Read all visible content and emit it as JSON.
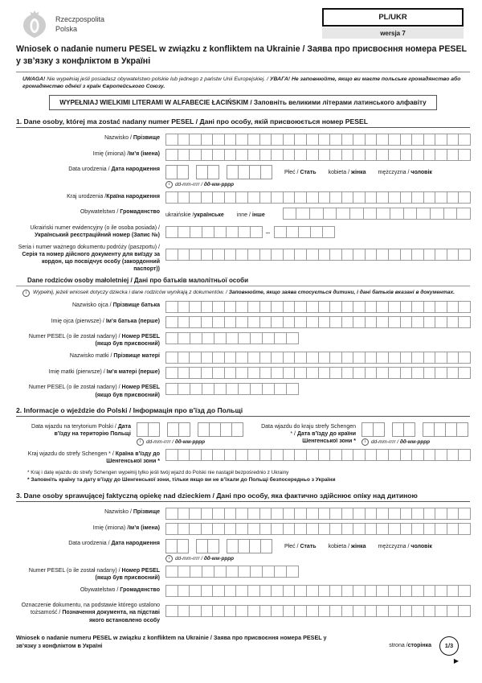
{
  "colors": {
    "cell_border": "#9a9a9a",
    "version_strip_bg": "#e7e7e7",
    "ink": "#1a1a1a"
  },
  "header": {
    "republic_line1": "Rzeczpospolita",
    "republic_line2": "Polska",
    "lang_code": "PL/UKR",
    "version": "wersja 7"
  },
  "title": "Wniosek o nadanie numeru PESEL w związku z konfliktem na Ukrainie / Заява про присвоєння номера PESEL у зв’язку з конфліктом в Україні",
  "notice": {
    "head_pl": "UWAGA!",
    "body_pl": " Nie wypełniaj jeśli posiadasz obywatelstwo polskie lub jednego z państw Unii Europejskiej. / ",
    "body_uk": "УВАГА! Не заповнюйте, якщо ви маєте польське громадянство або громадянство однієї з країн Європейського Союзу."
  },
  "instruction": "WYPEŁNIAJ WIELKIMI LITERAMI W ALFABECIE ŁACIŃSKIM / Заповніть великими літерами латинського алфавіту",
  "common": {
    "plec_pl": "Płeć / ",
    "plec_uk": "Стать",
    "kobieta_pl": "kobieta / ",
    "kobieta_uk": "жінка",
    "mezczyzna_pl": "mężczyzna / ",
    "mezczyzna_uk": "чоловік",
    "hint_pl": "dd-mm-rrrr / ",
    "hint_uk": "дд-мм-рррр",
    "info": "i",
    "dash": "–"
  },
  "s1": {
    "heading": "1. Dane osoby, której ma zostać nadany numer PESEL / Дані про особу, якій присвоюється номер PESEL",
    "nazwisko": {
      "pl": "Nazwisko / ",
      "uk": "Прізвище"
    },
    "imie": {
      "pl": "Imię (imiona) /",
      "uk": "Ім’я (імена)"
    },
    "data_urodzenia": {
      "pl": "Data urodzenia / ",
      "uk": "Дата народження"
    },
    "kraj": {
      "pl": "Kraj urodzenia /",
      "uk": "Країна народження"
    },
    "obywatelstwo": {
      "pl": "Obywatelstwo / ",
      "uk": "Громадянство"
    },
    "opt_ukrainskie": {
      "pl": "ukraińskie /",
      "uk": "українське"
    },
    "opt_inne": {
      "pl": "inne / ",
      "uk": "інше"
    },
    "ukr_numer": {
      "pl": "Ukraiński numer ewidencyjny (o ile osoba posiada) / ",
      "uk": "Український реєстраційний номер (Запис №)"
    },
    "dokument": {
      "pl": "Seria i numer ważnego dokumentu podróży (paszportu) /",
      "uk": "Серія та номер дійсного документу для виїзду за кордон, що посвідчує особу (закордонний паспорт))"
    },
    "parents_heading": "Dane rodziców osoby małoletniej / Дані про батьків малолітньої особи",
    "parents_note_pl": "Wypełnij, jeżeli wniosek dotyczy dziecka i dane rodziców wynikają z dokumentów. / ",
    "parents_note_uk": "Заповнюйте, якщо заява стосується дитини, і дані батьків вказані в документах.",
    "nazwisko_ojca": {
      "pl": "Nazwisko ojca / ",
      "uk": "Прізвище батька"
    },
    "imie_ojca": {
      "pl": "Imię ojca (pierwsze) / ",
      "uk": "Ім’я батька (перше)"
    },
    "pesel_ojca": {
      "pl": "Numer PESEL (o ile został nadany) / ",
      "uk": "Номер PESEL (якщо був присвоєний)"
    },
    "nazwisko_matki": {
      "pl": "Nazwisko matki / ",
      "uk": "Прізвище матері"
    },
    "imie_matki": {
      "pl": "Imię matki (pierwsze) / ",
      "uk": "Ім’я матері (перше)"
    },
    "pesel_matki": {
      "pl": "Numer PESEL (o ile został nadany) / ",
      "uk": "Номер PESEL (якщо був присвоєний)"
    }
  },
  "s2": {
    "heading": "2. Informacje o wjeździe do Polski / Інформація про в’їзд до Польщі",
    "data_polska": {
      "pl": "Data wjazdu na terytorium Polski / ",
      "uk": "Дата в’їзду на територію Польщі"
    },
    "data_schengen": {
      "pl": "Data wjazdu do kraju strefy Schengen * / ",
      "uk": "Дата в’їзду до країни Шенгенської зони *"
    },
    "kraj_schengen": {
      "pl": "Kraj wjazdu do strefy Schengen * / ",
      "uk": "Країна в’їзду до Шенгенської зони *"
    },
    "fn_pl": "* Kraj i datę wjazdu do strefy Schengen wypełnij tylko jeśli twój wjazd do Polski nie nastąpił bezpośrednio z Ukrainy",
    "fn_uk": "* Заповніть країну та дату в’їзду до Шенгенської зони, тільки якщо ви не в’їхали до Польщі безпосередньо з України"
  },
  "s3": {
    "heading": "3. Dane osoby sprawującej faktyczną opiekę nad dzieckiem / Дані про особу, яка фактично здійснює опіку над дитиною",
    "nazwisko": {
      "pl": "Nazwisko / ",
      "uk": "Прізвище"
    },
    "imie": {
      "pl": "Imię (imiona) /",
      "uk": "Ім’я (імена)"
    },
    "data_urodzenia": {
      "pl": "Data urodzenia / ",
      "uk": "Дата народження"
    },
    "pesel": {
      "pl": "Numer PESEL (o ile został nadany) / ",
      "uk": "Номер PESEL (якщо був присвоєний)"
    },
    "obywatelstwo": {
      "pl": "Obywatelstwo / ",
      "uk": "Громадянство"
    },
    "oznaczenie": {
      "pl": "Oznaczenie dokumentu, na podstawie którego ustalono tożsamość / ",
      "uk": "Позначення документа, на підставі якого встановлено особу"
    }
  },
  "footer": {
    "text": "Wniosek o nadanie numeru PESEL w związku z konfliktem na Ukrainie / Заява про присвоєння номера PESEL у зв’язку з конфліктом в Україні",
    "page_label_pl": "strona /",
    "page_label_uk": "сторінка",
    "page": "1/3",
    "arrow": "▶"
  }
}
